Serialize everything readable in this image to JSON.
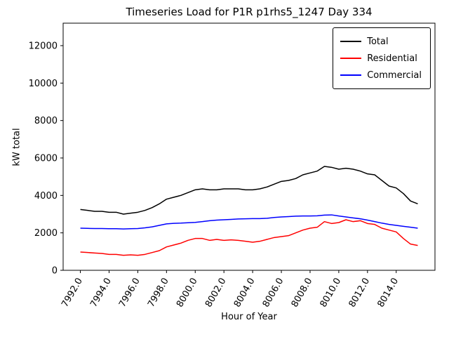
{
  "chart_data": {
    "type": "line",
    "title": "Timeseries Load for P1R p1rhs5_1247  Day 334",
    "xlabel": "Hour of Year",
    "ylabel": "kW total",
    "legend_position": "upper right",
    "grid": false,
    "xlim": [
      7990.8,
      8016.7
    ],
    "ylim": [
      0,
      13200
    ],
    "xticks": {
      "values": [
        7992,
        7994,
        7996,
        7998,
        8000,
        8002,
        8004,
        8006,
        8008,
        8010,
        8012,
        8014
      ],
      "labels": [
        "7992.0",
        "7994.0",
        "7996.0",
        "7998.0",
        "8000.0",
        "8002.0",
        "8004.0",
        "8006.0",
        "8008.0",
        "8010.0",
        "8012.0",
        "8014.0"
      ]
    },
    "yticks": {
      "values": [
        0,
        2000,
        4000,
        6000,
        8000,
        10000,
        12000
      ],
      "labels": [
        "0",
        "2000",
        "4000",
        "6000",
        "8000",
        "10000",
        "12000"
      ]
    },
    "x": [
      7992.0,
      7992.5,
      7993.0,
      7993.5,
      7994.0,
      7994.5,
      7995.0,
      7995.5,
      7996.0,
      7996.5,
      7997.0,
      7997.5,
      7998.0,
      7998.5,
      7999.0,
      7999.5,
      8000.0,
      8000.5,
      8001.0,
      8001.5,
      8002.0,
      8002.5,
      8003.0,
      8003.5,
      8004.0,
      8004.5,
      8005.0,
      8005.5,
      8006.0,
      8006.5,
      8007.0,
      8007.5,
      8008.0,
      8008.5,
      8009.0,
      8009.5,
      8010.0,
      8010.5,
      8011.0,
      8011.5,
      8012.0,
      8012.5,
      8013.0,
      8013.5,
      8014.0,
      8014.5,
      8015.0,
      8015.5
    ],
    "series": [
      {
        "name": "Total",
        "color": "#000000",
        "values": [
          3250,
          3200,
          3150,
          3150,
          3100,
          3100,
          3000,
          3050,
          3100,
          3200,
          3350,
          3550,
          3800,
          3900,
          4000,
          4150,
          4300,
          4350,
          4300,
          4300,
          4350,
          4350,
          4350,
          4300,
          4300,
          4350,
          4450,
          4600,
          4750,
          4800,
          4900,
          5100,
          5200,
          5300,
          5550,
          5500,
          5400,
          5450,
          5400,
          5300,
          5150,
          5100,
          4800,
          4500,
          4400,
          4100,
          3700,
          3550
        ]
      },
      {
        "name": "Residential",
        "color": "#ff0000",
        "values": [
          975,
          950,
          925,
          900,
          850,
          850,
          800,
          825,
          800,
          850,
          950,
          1050,
          1250,
          1350,
          1450,
          1600,
          1700,
          1700,
          1600,
          1650,
          1600,
          1625,
          1600,
          1550,
          1500,
          1550,
          1650,
          1750,
          1800,
          1850,
          2000,
          2150,
          2250,
          2300,
          2600,
          2500,
          2550,
          2700,
          2600,
          2650,
          2500,
          2450,
          2250,
          2150,
          2050,
          1700,
          1400,
          1325
        ]
      },
      {
        "name": "Commercial",
        "color": "#0000ff",
        "values": [
          2250,
          2240,
          2230,
          2230,
          2220,
          2220,
          2210,
          2220,
          2230,
          2270,
          2320,
          2400,
          2480,
          2510,
          2520,
          2540,
          2560,
          2600,
          2650,
          2680,
          2700,
          2720,
          2740,
          2750,
          2760,
          2760,
          2780,
          2820,
          2850,
          2870,
          2890,
          2900,
          2900,
          2910,
          2950,
          2960,
          2900,
          2850,
          2800,
          2750,
          2680,
          2600,
          2520,
          2450,
          2400,
          2350,
          2300,
          2250
        ]
      }
    ]
  }
}
